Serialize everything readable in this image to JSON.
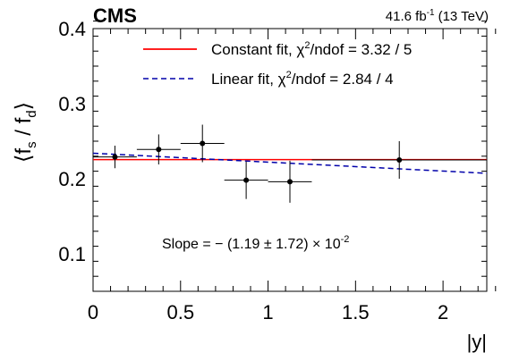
{
  "header": {
    "experiment": "CMS",
    "lumi_value": "41.6 fb",
    "lumi_sup": "-1",
    "energy": "(13 TeV)"
  },
  "legend": {
    "constant_label": "Constant fit, χ",
    "constant_sup": "2",
    "constant_rest": "/ndof = 3.32 / 5",
    "linear_label": "Linear fit, χ",
    "linear_sup": "2",
    "linear_rest": "/ndof = 2.84 / 4"
  },
  "annotation": {
    "slope_main": "Slope = − (1.19 ± 1.72) × 10",
    "slope_sup": "-2"
  },
  "axes": {
    "ylabel_main": "⟨f",
    "ylabel_s": "s",
    "ylabel_mid": " / f",
    "ylabel_d": "d",
    "ylabel_end": "⟩",
    "xlabel": "|y|"
  },
  "colors": {
    "constant": "#ff0000",
    "linear": "#0000aa",
    "data": "#000000"
  },
  "chart_data": {
    "type": "scatter",
    "xlabel": "|y|",
    "ylabel": "⟨f_s / f_d⟩",
    "xlim": [
      0,
      2.25
    ],
    "ylim": [
      0.05,
      0.4
    ],
    "x_ticks": [
      0,
      0.5,
      1,
      1.5,
      2
    ],
    "x_tick_labels": [
      "0",
      "0.5",
      "1",
      "1.5",
      "2"
    ],
    "y_ticks": [
      0.1,
      0.2,
      0.3,
      0.4
    ],
    "y_tick_labels": [
      "0.1",
      "0.2",
      "0.3",
      "0.4"
    ],
    "points": [
      {
        "x": 0.125,
        "y": 0.229,
        "xerr": 0.125,
        "yerr": 0.015
      },
      {
        "x": 0.375,
        "y": 0.239,
        "xerr": 0.125,
        "yerr": 0.02
      },
      {
        "x": 0.625,
        "y": 0.247,
        "xerr": 0.125,
        "yerr": 0.025
      },
      {
        "x": 0.875,
        "y": 0.198,
        "xerr": 0.125,
        "yerr": 0.025
      },
      {
        "x": 1.125,
        "y": 0.196,
        "xerr": 0.125,
        "yerr": 0.028
      },
      {
        "x": 1.75,
        "y": 0.225,
        "xerr": 0.5,
        "yerr": 0.025
      }
    ],
    "fits": [
      {
        "name": "Constant fit",
        "type": "constant",
        "x": [
          0,
          2.25
        ],
        "y": [
          0.2255,
          0.2255
        ]
      },
      {
        "name": "Linear fit",
        "type": "linear",
        "x": [
          0,
          2.25
        ],
        "y": [
          0.234,
          0.2072
        ]
      }
    ]
  }
}
